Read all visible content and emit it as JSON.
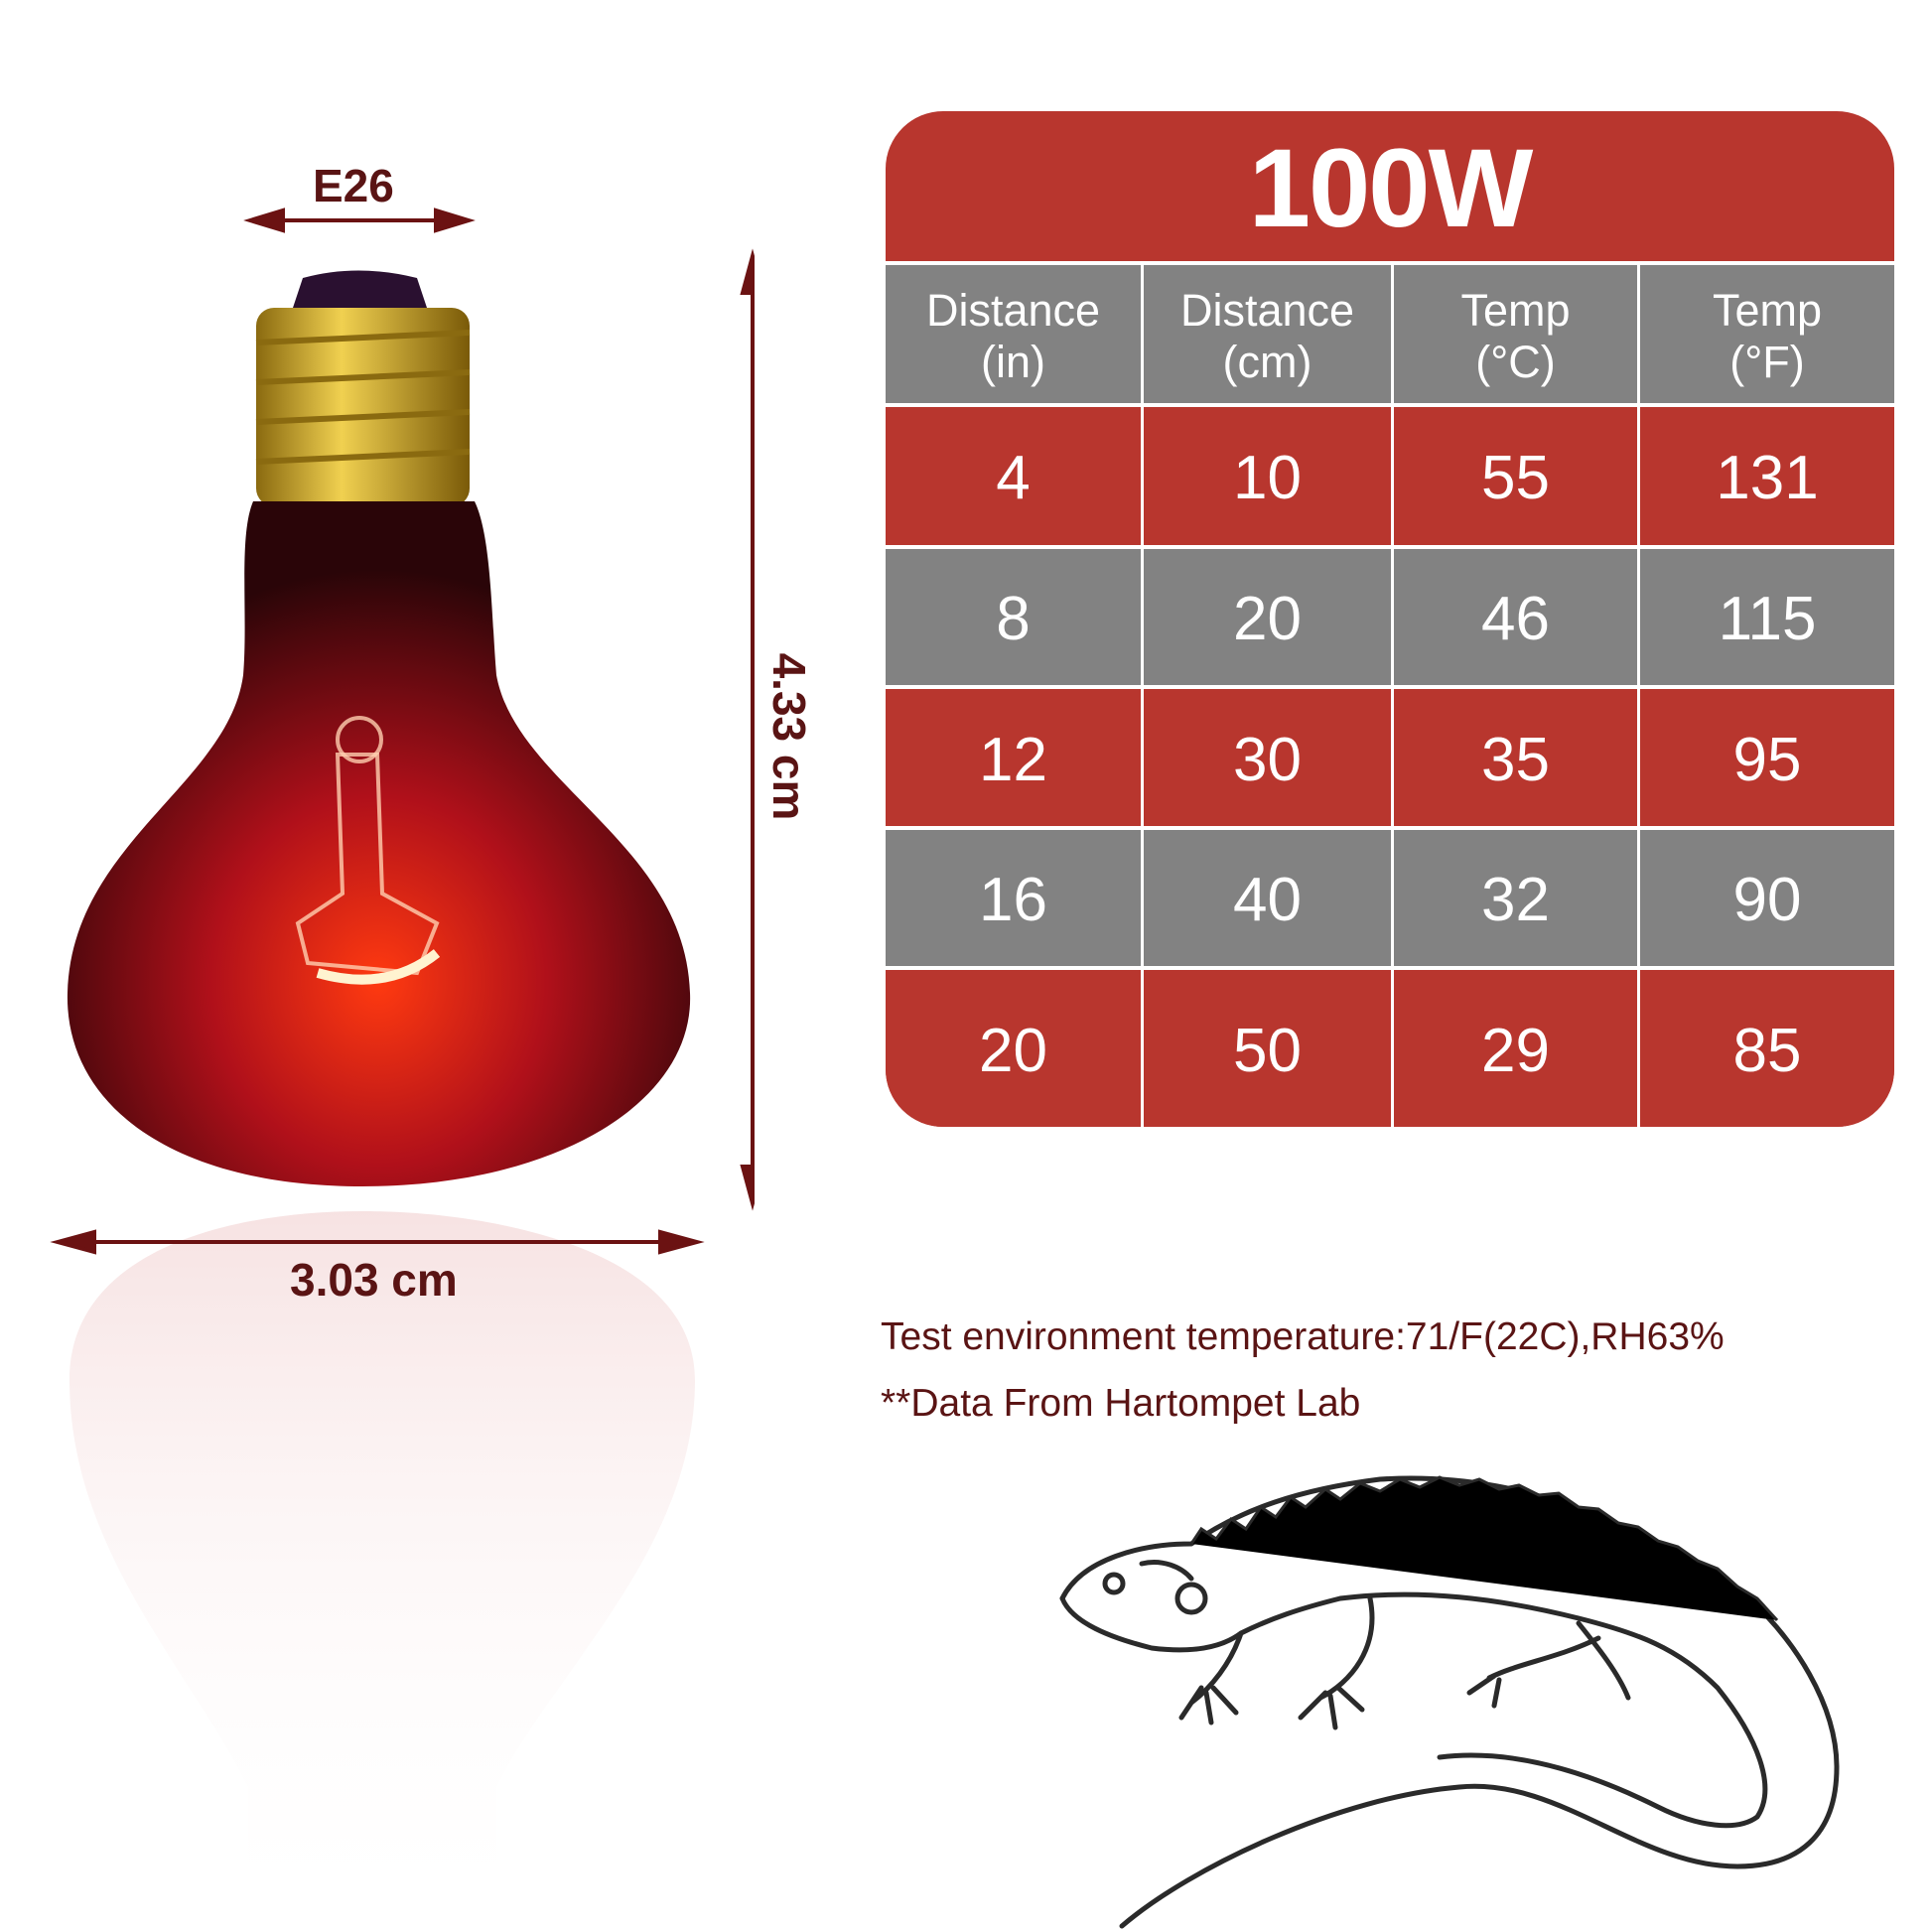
{
  "product": {
    "socket_label": "E26",
    "height_label": "4.33 cm",
    "width_label": "3.03 cm"
  },
  "table": {
    "title": "100W",
    "headers": [
      {
        "line1": "Distance",
        "line2": "(in)"
      },
      {
        "line1": "Distance",
        "line2": "(cm)"
      },
      {
        "line1": "Temp",
        "line2": "(°C)"
      },
      {
        "line1": "Temp",
        "line2": "(°F)"
      }
    ],
    "rows": [
      [
        "4",
        "10",
        "55",
        "131"
      ],
      [
        "8",
        "20",
        "46",
        "115"
      ],
      [
        "12",
        "30",
        "35",
        "95"
      ],
      [
        "16",
        "40",
        "32",
        "90"
      ],
      [
        "20",
        "50",
        "29",
        "85"
      ]
    ]
  },
  "notes": {
    "environment": "Test environment temperature:71/F(22C),RH63%",
    "source": "**Data From Hartompet Lab"
  },
  "colors": {
    "red": "#b8362e",
    "gray": "#828282",
    "dim_text": "#5a1414"
  }
}
